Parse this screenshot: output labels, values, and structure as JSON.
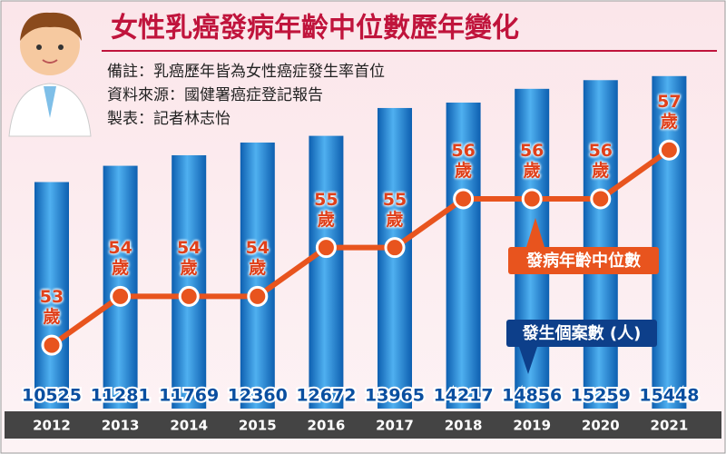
{
  "chart_data": {
    "type": "bar_line",
    "title": "女性乳癌發病年齡中位數歷年變化",
    "notes": [
      "備註：乳癌歷年皆為女性癌症發生率首位",
      "資料來源：國健署癌症登記報告",
      "製表：記者林志怡"
    ],
    "categories": [
      "2012",
      "2013",
      "2014",
      "2015",
      "2016",
      "2017",
      "2018",
      "2019",
      "2020",
      "2021"
    ],
    "series": [
      {
        "name": "發生個案數 (人)",
        "color": "#1f7fd0",
        "values": [
          10525,
          11281,
          11769,
          12360,
          12672,
          13965,
          14217,
          14856,
          15259,
          15448
        ]
      },
      {
        "name": "發病年齡中位數",
        "color": "#e8541e",
        "axis": "y2",
        "values": [
          53,
          54,
          54,
          54,
          55,
          55,
          56,
          56,
          56,
          57
        ],
        "value_labels": [
          "53歲",
          "54歲",
          "54歲",
          "54歲",
          "55歲",
          "55歲",
          "56歲",
          "56歲",
          "56歲",
          "57歲"
        ]
      }
    ],
    "ylim": [
      0,
      17000
    ],
    "y2lim": [
      51.7,
      59.2
    ]
  }
}
